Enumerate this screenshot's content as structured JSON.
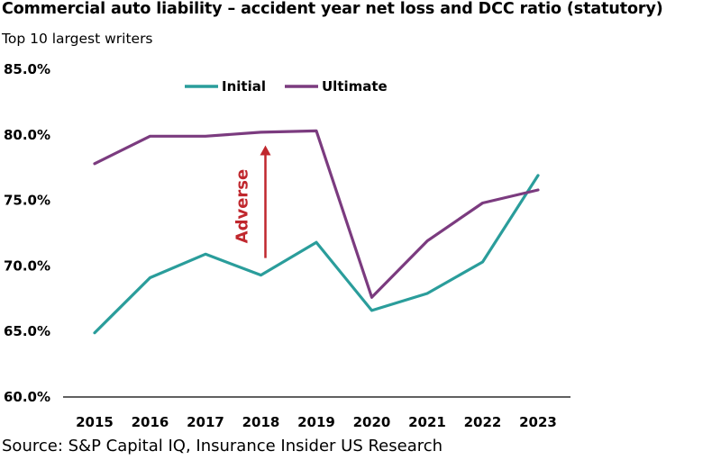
{
  "chart_data": {
    "type": "line",
    "title": "Commercial auto liability – accident year net loss and DCC ratio (statutory)",
    "subtitle": "Top 10 largest writers",
    "source": "Source: S&P Capital IQ, Insurance Insider US Research",
    "categories": [
      "2015",
      "2016",
      "2017",
      "2018",
      "2019",
      "2020",
      "2021",
      "2022",
      "2023"
    ],
    "series": [
      {
        "name": "Initial",
        "color": "#2a9d9b",
        "values": [
          64.9,
          69.1,
          70.9,
          69.3,
          71.8,
          66.6,
          67.9,
          70.3,
          76.9
        ]
      },
      {
        "name": "Ultimate",
        "color": "#7b3b7f",
        "values": [
          77.8,
          79.9,
          79.9,
          80.2,
          80.3,
          67.6,
          71.9,
          74.8,
          75.8
        ]
      }
    ],
    "ylim": [
      60,
      85
    ],
    "yticks": [
      60,
      65,
      70,
      75,
      80,
      85
    ],
    "ytick_labels": [
      "60.0%",
      "65.0%",
      "70.0%",
      "75.0%",
      "80.0%",
      "85.0%"
    ],
    "xlabel": "",
    "ylabel": "",
    "grid": false,
    "legend_position": "top",
    "annotation": {
      "text": "Adverse",
      "color": "#c0272d",
      "category": "2018",
      "from": 70.6,
      "to": 79.2
    }
  }
}
